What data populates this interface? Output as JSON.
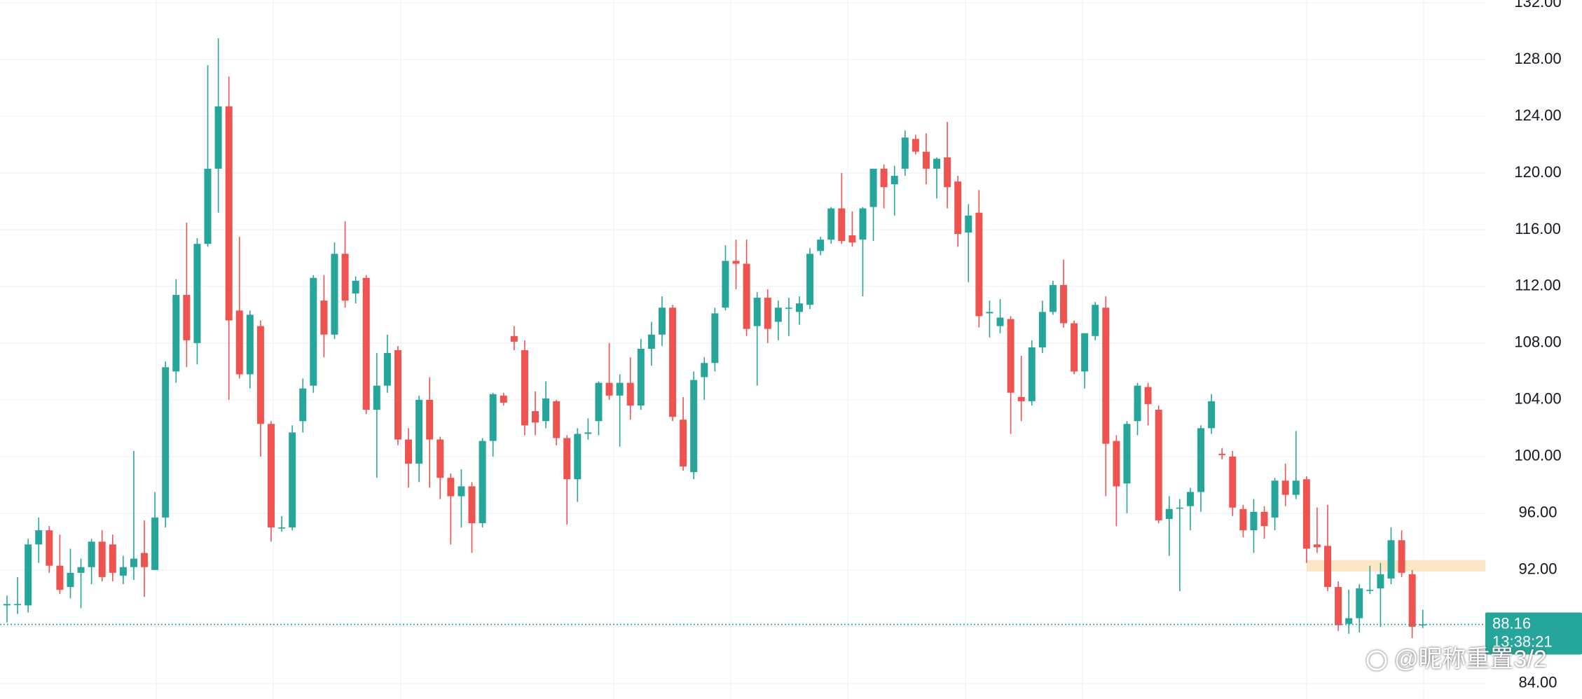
{
  "chart_data": {
    "type": "candlestick",
    "ylim": [
      82.9,
      132.2
    ],
    "yticks": [
      {
        "value": 84,
        "label": "84.00"
      },
      {
        "value": 88,
        "label": "88.00"
      },
      {
        "value": 92,
        "label": "92.00"
      },
      {
        "value": 96,
        "label": "96.00"
      },
      {
        "value": 100,
        "label": "100.00"
      },
      {
        "value": 104,
        "label": "104.00"
      },
      {
        "value": 108,
        "label": "108.00"
      },
      {
        "value": 112,
        "label": "112.00"
      },
      {
        "value": 116,
        "label": "116.00"
      },
      {
        "value": 120,
        "label": "120.00"
      },
      {
        "value": 124,
        "label": "124.00"
      },
      {
        "value": 128,
        "label": "128.00"
      },
      {
        "value": 132,
        "label": "132.00"
      }
    ],
    "grid": true,
    "up_color": "#26a69a",
    "down_color": "#ef5350",
    "last_price": 88.16,
    "countdown": "13:38:21",
    "zone": [
      91.9,
      92.7
    ],
    "zone_color": "#fde6c4",
    "watermark": "@昵称重置3/2",
    "candles": [
      [
        89.5,
        90.2,
        88.3,
        89.6
      ],
      [
        89.6,
        91.5,
        88.9,
        89.6
      ],
      [
        89.5,
        94.2,
        89,
        93.8
      ],
      [
        93.8,
        95.7,
        92.5,
        94.8
      ],
      [
        94.8,
        95.1,
        91.8,
        92.3
      ],
      [
        92.3,
        94.5,
        90.3,
        90.6
      ],
      [
        90.8,
        93.5,
        90,
        91.8
      ],
      [
        91.8,
        92.8,
        89.3,
        92.2
      ],
      [
        92.2,
        94.2,
        91,
        94
      ],
      [
        94,
        94.8,
        91.2,
        91.5
      ],
      [
        93.8,
        94.5,
        91.2,
        91.8
      ],
      [
        91.6,
        93,
        91,
        92.2
      ],
      [
        92.2,
        100.4,
        91.3,
        92.8
      ],
      [
        93.2,
        95.5,
        90.1,
        92.2
      ],
      [
        92,
        97.5,
        92,
        95.7
      ],
      [
        95.7,
        106.7,
        95,
        106.3
      ],
      [
        106,
        112.5,
        105.2,
        111.4
      ],
      [
        111.4,
        116.5,
        106.3,
        108.2
      ],
      [
        108,
        115.4,
        106.5,
        115
      ],
      [
        115,
        127.6,
        114.8,
        120.3
      ],
      [
        120.3,
        129.5,
        117.2,
        124.7
      ],
      [
        124.7,
        126.8,
        104,
        109.6
      ],
      [
        110.3,
        115.5,
        105.5,
        105.8
      ],
      [
        105.8,
        110.3,
        104.8,
        110
      ],
      [
        109.2,
        109.6,
        100,
        102.3
      ],
      [
        102.3,
        102.5,
        94,
        95
      ],
      [
        95,
        95.8,
        94.7,
        95
      ],
      [
        95,
        102.2,
        94.8,
        101.7
      ],
      [
        102.5,
        105.5,
        101.7,
        104.8
      ],
      [
        105,
        112.8,
        104.5,
        112.6
      ],
      [
        111,
        112.8,
        107,
        108.6
      ],
      [
        108.6,
        115.1,
        108.3,
        114.3
      ],
      [
        114.3,
        116.6,
        110.5,
        111
      ],
      [
        111.5,
        112.7,
        110.8,
        112.4
      ],
      [
        112.6,
        112.8,
        103,
        103.3
      ],
      [
        103.3,
        107.3,
        98.5,
        105
      ],
      [
        105,
        108.6,
        104.5,
        107.3
      ],
      [
        107.5,
        107.8,
        100.8,
        101.2
      ],
      [
        101.2,
        102,
        97.8,
        99.5
      ],
      [
        99.5,
        104.3,
        98.2,
        104
      ],
      [
        104,
        105.6,
        97.8,
        101.2
      ],
      [
        101.2,
        101.4,
        97,
        98.5
      ],
      [
        98.5,
        98.8,
        93.8,
        97.2
      ],
      [
        97.2,
        99.1,
        95,
        97.9
      ],
      [
        97.9,
        98.2,
        93.2,
        95.3
      ],
      [
        95.3,
        101.3,
        95,
        101.1
      ],
      [
        101.1,
        104.5,
        100,
        104.4
      ],
      [
        104.3,
        104.5,
        103.6,
        103.8
      ],
      [
        108.5,
        109.2,
        107.5,
        108.1
      ],
      [
        107.5,
        108.2,
        101.5,
        102.2
      ],
      [
        103.2,
        104.6,
        101.5,
        102.4
      ],
      [
        102.5,
        105.3,
        102,
        104.1
      ],
      [
        103.9,
        104,
        100.8,
        101.3
      ],
      [
        101.3,
        101.5,
        95.2,
        98.4
      ],
      [
        98.4,
        102,
        96.8,
        101.6
      ],
      [
        101.6,
        102.7,
        101.2,
        101.7
      ],
      [
        102.5,
        105.3,
        101.5,
        105.2
      ],
      [
        105.2,
        108,
        104,
        104.3
      ],
      [
        104.3,
        105.8,
        100.7,
        105.2
      ],
      [
        105.2,
        107,
        102.6,
        103.6
      ],
      [
        103.6,
        108.3,
        103.3,
        107.6
      ],
      [
        107.6,
        109.5,
        106.4,
        108.6
      ],
      [
        108.6,
        111.3,
        107.8,
        110.5
      ],
      [
        110.5,
        110.7,
        102.5,
        102.8
      ],
      [
        102.6,
        104.2,
        99,
        99.3
      ],
      [
        98.9,
        106,
        98.4,
        105.4
      ],
      [
        105.6,
        107,
        104,
        106.6
      ],
      [
        106.6,
        110.5,
        106,
        110.1
      ],
      [
        110.5,
        114.9,
        110.3,
        113.8
      ],
      [
        113.8,
        115.3,
        111.8,
        113.6
      ],
      [
        113.6,
        115.3,
        108.5,
        109
      ],
      [
        109.2,
        111.6,
        105,
        111.2
      ],
      [
        111.2,
        111.8,
        108,
        109
      ],
      [
        109.5,
        111,
        108.2,
        110.5
      ],
      [
        110.5,
        111.2,
        108.5,
        110.5
      ],
      [
        110.2,
        111.3,
        109.3,
        110.8
      ],
      [
        110.7,
        114.7,
        110.4,
        114.3
      ],
      [
        114.5,
        115.5,
        114.2,
        115.3
      ],
      [
        115.3,
        117.6,
        115,
        117.5
      ],
      [
        117.5,
        120,
        115,
        115.2
      ],
      [
        115.6,
        117.3,
        114.8,
        115.1
      ],
      [
        115.3,
        117.6,
        111.3,
        117.5
      ],
      [
        117.6,
        120.3,
        115.2,
        120.3
      ],
      [
        120.3,
        120.6,
        117.5,
        119
      ],
      [
        119.2,
        120.5,
        117,
        119.8
      ],
      [
        120.3,
        123,
        119.8,
        122.5
      ],
      [
        122.4,
        122.7,
        121.3,
        121.5
      ],
      [
        121.5,
        122.8,
        119.2,
        120.3
      ],
      [
        120.3,
        121.1,
        118.2,
        121
      ],
      [
        121.1,
        123.6,
        117.5,
        119
      ],
      [
        119.4,
        119.8,
        114.8,
        115.7
      ],
      [
        115.8,
        117.8,
        112.3,
        117
      ],
      [
        117.2,
        118.8,
        109.1,
        109.9
      ],
      [
        110.1,
        111,
        108.4,
        110.2
      ],
      [
        109.2,
        111.1,
        108.7,
        109.8
      ],
      [
        109.7,
        109.9,
        101.6,
        104.5
      ],
      [
        104.2,
        107.1,
        102.5,
        103.9
      ],
      [
        103.9,
        108.2,
        103.6,
        107.7
      ],
      [
        107.7,
        111,
        107.3,
        110.2
      ],
      [
        110.2,
        112.4,
        110,
        112.1
      ],
      [
        112.1,
        113.9,
        109.1,
        109.4
      ],
      [
        109.4,
        109.6,
        105.8,
        106
      ],
      [
        106,
        108.7,
        104.8,
        108.7
      ],
      [
        108.5,
        110.9,
        108.2,
        110.7
      ],
      [
        110.5,
        111.3,
        97.2,
        100.9
      ],
      [
        101.1,
        101.5,
        95.1,
        97.9
      ],
      [
        98.1,
        102.5,
        96,
        102.3
      ],
      [
        102.5,
        105.2,
        101.5,
        105
      ],
      [
        104.9,
        105.2,
        102.2,
        103.7
      ],
      [
        103.3,
        103.6,
        95.3,
        95.5
      ],
      [
        95.6,
        97.2,
        93,
        96.3
      ],
      [
        96.4,
        97,
        90.5,
        96.4
      ],
      [
        96.5,
        97.8,
        94.8,
        97.5
      ],
      [
        97.5,
        102.2,
        96.1,
        102
      ],
      [
        102,
        104.4,
        101.6,
        103.9
      ],
      [
        100.2,
        100.6,
        99.8,
        100.1
      ],
      [
        100,
        100.4,
        95.8,
        96.4
      ],
      [
        96.3,
        96.6,
        94.3,
        94.8
      ],
      [
        94.8,
        97,
        93.2,
        96.1
      ],
      [
        96.1,
        96.5,
        94.2,
        95.1
      ],
      [
        95.7,
        98.5,
        94.8,
        98.3
      ],
      [
        98.3,
        99.5,
        96.5,
        97.3
      ],
      [
        97.3,
        101.8,
        97,
        98.3
      ],
      [
        98.4,
        98.6,
        92.5,
        93.5
      ],
      [
        93.8,
        96.4,
        93.2,
        93.6
      ],
      [
        93.7,
        96.6,
        90.5,
        90.8
      ],
      [
        90.8,
        91.2,
        87.7,
        88.1
      ],
      [
        88.2,
        90.6,
        87.5,
        88.6
      ],
      [
        88.6,
        91,
        87.6,
        90.7
      ],
      [
        90.6,
        92.3,
        90.3,
        90.6
      ],
      [
        90.7,
        92.5,
        88,
        91.7
      ],
      [
        91.4,
        95,
        91,
        94.1
      ],
      [
        94.1,
        94.8,
        91.5,
        91.8
      ],
      [
        91.7,
        92,
        87.2,
        88
      ],
      [
        88.1,
        89.2,
        87.9,
        88.16
      ]
    ]
  }
}
